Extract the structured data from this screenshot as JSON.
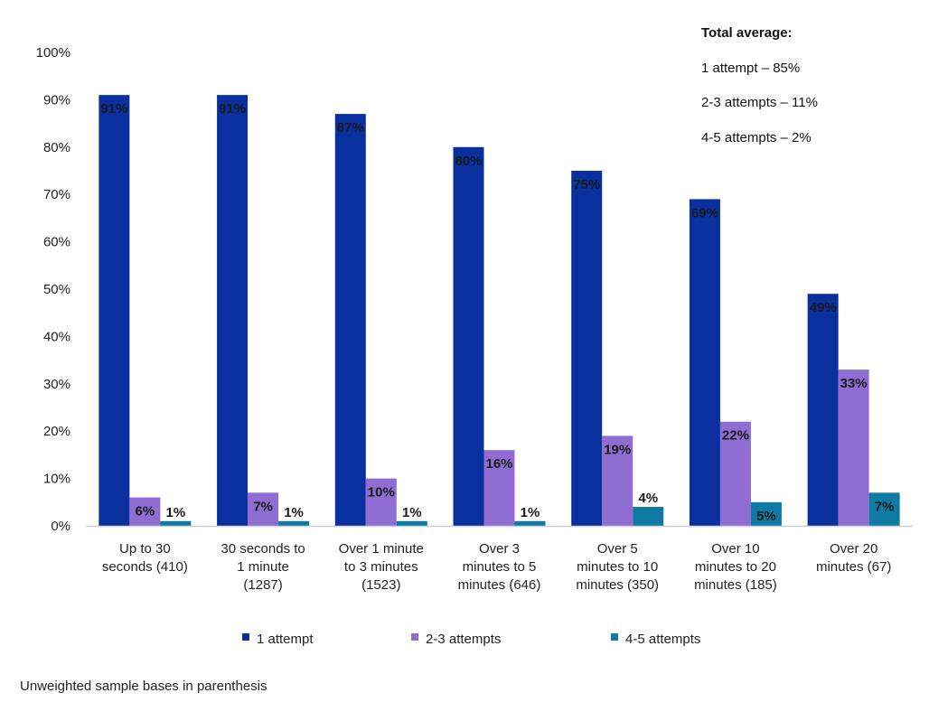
{
  "chart_data": {
    "type": "bar",
    "categories": [
      [
        "Up to 30",
        "seconds (410)"
      ],
      [
        "30 seconds to",
        "1 minute",
        "(1287)"
      ],
      [
        "Over 1 minute",
        "to 3 minutes",
        "(1523)"
      ],
      [
        "Over 3",
        "minutes to 5",
        "minutes (646)"
      ],
      [
        "Over 5",
        "minutes to 10",
        "minutes (350)"
      ],
      [
        "Over 10",
        "minutes to 20",
        "minutes (185)"
      ],
      [
        "Over 20",
        "minutes (67)"
      ]
    ],
    "series": [
      {
        "name": "1 attempt",
        "color": "#0a2f9f",
        "values": [
          91,
          91,
          87,
          80,
          75,
          69,
          49
        ]
      },
      {
        "name": "2-3 attempts",
        "color": "#8f6dd2",
        "values": [
          6,
          7,
          10,
          16,
          19,
          22,
          33
        ]
      },
      {
        "name": "4-5 attempts",
        "color": "#0f7aa3",
        "values": [
          1,
          1,
          1,
          1,
          4,
          5,
          7
        ]
      }
    ],
    "ylim": [
      0,
      100
    ],
    "yticks": [
      "0%",
      "10%",
      "20%",
      "30%",
      "40%",
      "50%",
      "60%",
      "70%",
      "80%",
      "90%",
      "100%"
    ],
    "value_suffix": "%",
    "grid": false,
    "legend_placement": "bottom"
  },
  "annotation": {
    "title": "Total average:",
    "lines": [
      "1 attempt – 85%",
      "2-3 attempts – 11%",
      "4-5 attempts – 2%"
    ]
  },
  "footnote": "Unweighted sample bases in parenthesis"
}
